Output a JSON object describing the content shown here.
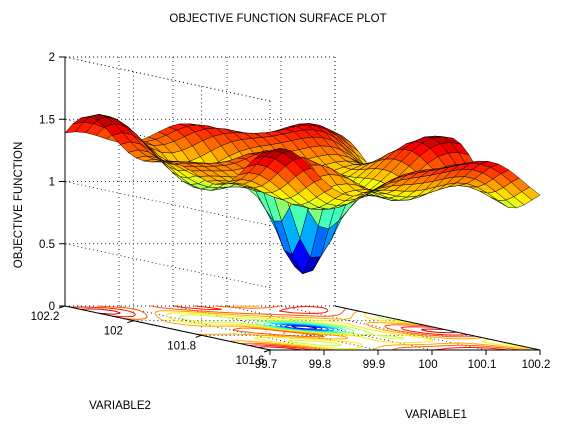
{
  "chart_data": {
    "type": "surface",
    "title": "OBJECTIVE FUNCTION SURFACE PLOT",
    "xlabel": "VARIABLE1",
    "ylabel": "VARIABLE2",
    "zlabel": "OBJECTIVE FUNCTION",
    "xlim": [
      99.7,
      100.2
    ],
    "ylim": [
      101.6,
      102.2
    ],
    "zlim": [
      0,
      2
    ],
    "x_ticks": [
      "99.7",
      "99.8",
      "99.9",
      "100",
      "100.1",
      "100.2"
    ],
    "y_ticks": [
      "101.6",
      "101.8",
      "102",
      "102.2"
    ],
    "z_ticks": [
      "0",
      "0.5",
      "1",
      "1.5",
      "2"
    ],
    "minimum": {
      "x": 99.95,
      "y": 101.9,
      "z": 0.35
    },
    "colormap": "jet",
    "grid": true,
    "contour_projection": true
  }
}
